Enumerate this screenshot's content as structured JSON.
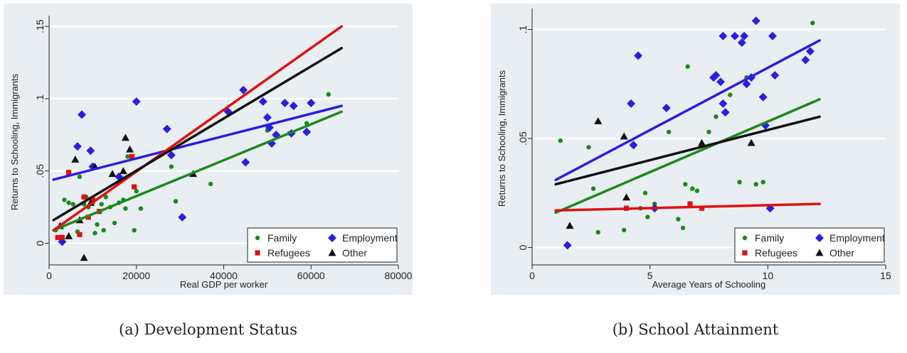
{
  "captions": {
    "a": "(a) Development Status",
    "b": "(b) School Attainment"
  },
  "colors": {
    "family": "#1a8a1a",
    "employment": "#2a1ee0",
    "refugees": "#e01010",
    "other": "#111111",
    "panel_bg": "#e9eef3",
    "grid": "#ffffff"
  },
  "chart_data": [
    {
      "type": "scatter",
      "xlabel": "Real GDP per worker",
      "ylabel": "Returns to Schooling, Immigrants",
      "xlim": [
        0,
        80000
      ],
      "ylim": [
        -0.015,
        0.155
      ],
      "xticks": [
        0,
        20000,
        40000,
        60000,
        80000
      ],
      "xtick_labels": [
        "0",
        "20000",
        "40000",
        "60000",
        "80000"
      ],
      "yticks": [
        0,
        0.05,
        0.1,
        0.15
      ],
      "ytick_labels": [
        "0",
        ".05",
        ".1",
        ".15"
      ],
      "grid": true,
      "legend_position": "bottom-right",
      "legend": [
        "Family",
        "Employment",
        "Refugees",
        "Other"
      ],
      "series": [
        {
          "name": "Family",
          "marker": "circle",
          "points": [
            [
              1500,
              0.009
            ],
            [
              3500,
              0.03
            ],
            [
              4500,
              0.028
            ],
            [
              5500,
              0.027
            ],
            [
              6500,
              0.008
            ],
            [
              7000,
              0.046
            ],
            [
              8000,
              0.027
            ],
            [
              8500,
              0.032
            ],
            [
              9000,
              0.025
            ],
            [
              10000,
              0.028
            ],
            [
              10500,
              0.007
            ],
            [
              11000,
              0.013
            ],
            [
              12000,
              0.027
            ],
            [
              12500,
              0.009
            ],
            [
              13000,
              0.032
            ],
            [
              14000,
              0.025
            ],
            [
              15000,
              0.014
            ],
            [
              16000,
              0.028
            ],
            [
              17000,
              0.03
            ],
            [
              17500,
              0.024
            ],
            [
              18000,
              0.06
            ],
            [
              19500,
              0.009
            ],
            [
              20000,
              0.036
            ],
            [
              21000,
              0.024
            ],
            [
              28000,
              0.053
            ],
            [
              29000,
              0.029
            ],
            [
              37000,
              0.041
            ],
            [
              50000,
              0.078
            ],
            [
              55000,
              0.076
            ],
            [
              59000,
              0.083
            ],
            [
              64000,
              0.103
            ]
          ]
        },
        {
          "name": "Employment",
          "marker": "diamond",
          "points": [
            [
              3000,
              0.001
            ],
            [
              6500,
              0.067
            ],
            [
              7500,
              0.089
            ],
            [
              9500,
              0.064
            ],
            [
              10000,
              0.053
            ],
            [
              16000,
              0.046
            ],
            [
              20000,
              0.098
            ],
            [
              27000,
              0.079
            ],
            [
              28000,
              0.061
            ],
            [
              30500,
              0.018
            ],
            [
              41000,
              0.091
            ],
            [
              44500,
              0.106
            ],
            [
              45000,
              0.056
            ],
            [
              49000,
              0.098
            ],
            [
              50000,
              0.087
            ],
            [
              50500,
              0.08
            ],
            [
              51000,
              0.069
            ],
            [
              52000,
              0.075
            ],
            [
              54000,
              0.097
            ],
            [
              55500,
              0.076
            ],
            [
              56000,
              0.095
            ],
            [
              59000,
              0.077
            ],
            [
              60000,
              0.097
            ]
          ]
        },
        {
          "name": "Refugees",
          "marker": "square",
          "points": [
            [
              2000,
              0.004
            ],
            [
              3000,
              0.004
            ],
            [
              4500,
              0.049
            ],
            [
              7000,
              0.006
            ],
            [
              8000,
              0.032
            ],
            [
              9000,
              0.018
            ],
            [
              10000,
              0.03
            ],
            [
              11500,
              0.022
            ],
            [
              19000,
              0.06
            ],
            [
              19500,
              0.039
            ]
          ]
        },
        {
          "name": "Other",
          "marker": "triangle",
          "points": [
            [
              2500,
              0.012
            ],
            [
              4500,
              0.005
            ],
            [
              6000,
              0.058
            ],
            [
              7000,
              0.016
            ],
            [
              8000,
              -0.01
            ],
            [
              9500,
              0.028
            ],
            [
              10500,
              0.053
            ],
            [
              14500,
              0.048
            ],
            [
              17000,
              0.05
            ],
            [
              17500,
              0.073
            ],
            [
              18500,
              0.065
            ],
            [
              33000,
              0.048
            ]
          ]
        }
      ],
      "fit_lines": [
        {
          "name": "Family",
          "from": [
            1000,
            0.009
          ],
          "to": [
            67000,
            0.091
          ]
        },
        {
          "name": "Employment",
          "from": [
            1000,
            0.044
          ],
          "to": [
            67000,
            0.095
          ]
        },
        {
          "name": "Refugees",
          "from": [
            1000,
            0.009
          ],
          "to": [
            67000,
            0.15
          ]
        },
        {
          "name": "Other",
          "from": [
            1000,
            0.016
          ],
          "to": [
            67000,
            0.135
          ]
        }
      ]
    },
    {
      "type": "scatter",
      "xlabel": "Average Years of Schooling",
      "ylabel": "Returns to Schooling, Immigrants",
      "xlim": [
        0,
        15
      ],
      "ylim": [
        -0.008,
        0.108
      ],
      "xticks": [
        0,
        5,
        10,
        15
      ],
      "xtick_labels": [
        "0",
        "5",
        "10",
        "15"
      ],
      "yticks": [
        0,
        0.05,
        0.1
      ],
      "ytick_labels": [
        "0",
        ".05",
        ".1"
      ],
      "grid": true,
      "legend_position": "bottom-right",
      "legend": [
        "Family",
        "Employment",
        "Refugees",
        "Other"
      ],
      "series": [
        {
          "name": "Family",
          "marker": "circle",
          "points": [
            [
              1.2,
              0.049
            ],
            [
              2.4,
              0.046
            ],
            [
              2.6,
              0.027
            ],
            [
              2.8,
              0.007
            ],
            [
              3.9,
              0.008
            ],
            [
              4.6,
              0.018
            ],
            [
              4.8,
              0.025
            ],
            [
              4.9,
              0.014
            ],
            [
              5.2,
              0.02
            ],
            [
              5.8,
              0.053
            ],
            [
              6.2,
              0.013
            ],
            [
              6.4,
              0.009
            ],
            [
              6.5,
              0.029
            ],
            [
              6.6,
              0.083
            ],
            [
              6.8,
              0.027
            ],
            [
              7.0,
              0.026
            ],
            [
              7.5,
              0.053
            ],
            [
              7.8,
              0.06
            ],
            [
              8.4,
              0.07
            ],
            [
              8.8,
              0.03
            ],
            [
              9.1,
              0.078
            ],
            [
              9.5,
              0.029
            ],
            [
              9.8,
              0.03
            ],
            [
              11.9,
              0.103
            ]
          ]
        },
        {
          "name": "Employment",
          "marker": "diamond",
          "points": [
            [
              1.5,
              0.001
            ],
            [
              4.2,
              0.066
            ],
            [
              4.3,
              0.047
            ],
            [
              4.5,
              0.088
            ],
            [
              5.7,
              0.064
            ],
            [
              7.7,
              0.078
            ],
            [
              7.8,
              0.079
            ],
            [
              8.0,
              0.076
            ],
            [
              8.1,
              0.066
            ],
            [
              8.2,
              0.062
            ],
            [
              8.1,
              0.097
            ],
            [
              8.6,
              0.097
            ],
            [
              8.9,
              0.094
            ],
            [
              9.0,
              0.097
            ],
            [
              9.1,
              0.075
            ],
            [
              9.3,
              0.078
            ],
            [
              9.5,
              0.104
            ],
            [
              9.8,
              0.069
            ],
            [
              9.9,
              0.056
            ],
            [
              10.2,
              0.097
            ],
            [
              10.3,
              0.079
            ],
            [
              11.6,
              0.086
            ],
            [
              11.8,
              0.09
            ],
            [
              10.1,
              0.018
            ],
            [
              5.2,
              0.018
            ]
          ]
        },
        {
          "name": "Refugees",
          "marker": "square",
          "points": [
            [
              4.0,
              0.018
            ],
            [
              6.7,
              0.02
            ],
            [
              7.2,
              0.018
            ]
          ]
        },
        {
          "name": "Other",
          "marker": "triangle",
          "points": [
            [
              1.6,
              0.01
            ],
            [
              2.8,
              0.058
            ],
            [
              3.9,
              0.051
            ],
            [
              4.0,
              0.023
            ],
            [
              7.2,
              0.048
            ],
            [
              9.3,
              0.048
            ]
          ]
        }
      ],
      "fit_lines": [
        {
          "name": "Family",
          "from": [
            1.0,
            0.016
          ],
          "to": [
            12.2,
            0.068
          ]
        },
        {
          "name": "Employment",
          "from": [
            1.0,
            0.031
          ],
          "to": [
            12.2,
            0.095
          ]
        },
        {
          "name": "Refugees",
          "from": [
            1.0,
            0.017
          ],
          "to": [
            12.2,
            0.02
          ]
        },
        {
          "name": "Other",
          "from": [
            1.0,
            0.029
          ],
          "to": [
            12.2,
            0.06
          ]
        }
      ]
    }
  ]
}
